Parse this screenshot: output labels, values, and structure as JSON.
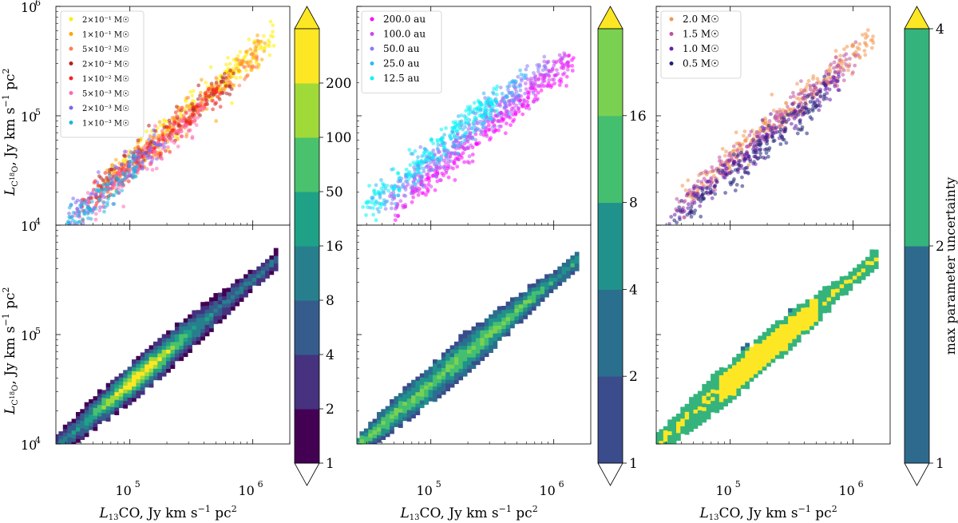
{
  "chart_data": {
    "type": "scatter",
    "layout": "2 rows x 3 columns, shared log axes; top row scatter, bottom row binned heatmap",
    "x_axis": {
      "label": "L13CO, Jy km s-1 pc2",
      "scale": "log",
      "xlim": [
        25000,
        2000000
      ],
      "ticks": [
        "10^5",
        "10^6"
      ]
    },
    "y_axis": {
      "label": "LC18O, Jy km s-1 pc2",
      "scale": "log",
      "ylim": [
        10000,
        1000000
      ],
      "ticks": [
        "10^4",
        "10^5",
        "10^6"
      ]
    },
    "scatter_panels": [
      {
        "name": "disk mass",
        "legend_placement": "top-left",
        "series": [
          {
            "label": "2×10⁻¹ M☉",
            "color": "#ffee00",
            "offset": 0.06,
            "xmin": 70000,
            "xmax": 1500000,
            "n": 200
          },
          {
            "label": "1×10⁻¹ M☉",
            "color": "#ffa500",
            "offset": 0.03,
            "xmin": 60000,
            "xmax": 1300000,
            "n": 150
          },
          {
            "label": "5×10⁻² M☉",
            "color": "#ff7f50",
            "offset": 0.0,
            "xmin": 50000,
            "xmax": 1100000,
            "n": 150
          },
          {
            "label": "2×10⁻² M☉",
            "color": "#b22222",
            "offset": 0.02,
            "xmin": 45000,
            "xmax": 700000,
            "n": 130
          },
          {
            "label": "1×10⁻² M☉",
            "color": "#ff2020",
            "offset": -0.02,
            "xmin": 40000,
            "xmax": 550000,
            "n": 130
          },
          {
            "label": "5×10⁻³ M☉",
            "color": "#ff69b4",
            "offset": -0.06,
            "xmin": 35000,
            "xmax": 400000,
            "n": 120
          },
          {
            "label": "2×10⁻³ M☉",
            "color": "#7b68ee",
            "offset": -0.04,
            "xmin": 30000,
            "xmax": 200000,
            "n": 100
          },
          {
            "label": "1×10⁻³ M☉",
            "color": "#1fb4e0",
            "offset": -0.08,
            "xmin": 28000,
            "xmax": 120000,
            "n": 100
          }
        ],
        "colorbar": {
          "ticks": [
            "1",
            "2",
            "4",
            "8",
            "16",
            "50",
            "100",
            "200"
          ],
          "colors": [
            "#440154",
            "#46327e",
            "#365c8d",
            "#277f8e",
            "#1fa187",
            "#4ac16d",
            "#a0da39",
            "#fde725"
          ],
          "extend": "both"
        }
      },
      {
        "name": "disk radius",
        "legend_placement": "top-left",
        "series": [
          {
            "label": "200.0 au",
            "color": "#ff00ff",
            "offset": -0.14,
            "xmin": 50000,
            "xmax": 1500000,
            "n": 220
          },
          {
            "label": "100.0 au",
            "color": "#c84bf0",
            "offset": -0.06,
            "xmin": 45000,
            "xmax": 1300000,
            "n": 200
          },
          {
            "label": "50.0 au",
            "color": "#8a7af5",
            "offset": 0.02,
            "xmin": 40000,
            "xmax": 900000,
            "n": 180
          },
          {
            "label": "25.0 au",
            "color": "#35b6f5",
            "offset": 0.08,
            "xmin": 32000,
            "xmax": 600000,
            "n": 170
          },
          {
            "label": "12.5 au",
            "color": "#00f5f5",
            "offset": 0.12,
            "xmin": 28000,
            "xmax": 350000,
            "n": 160
          }
        ],
        "colorbar": {
          "ticks": [
            "1",
            "2",
            "4",
            "8",
            "16"
          ],
          "colors": [
            "#3b4c8c",
            "#2b6f8e",
            "#21918c",
            "#44bf70",
            "#7ad151"
          ],
          "extend": "both"
        }
      },
      {
        "name": "stellar mass",
        "legend_placement": "top-left",
        "series": [
          {
            "label": "2.0 M☉",
            "color": "#f39651",
            "offset": 0.06,
            "xmin": 40000,
            "xmax": 1500000,
            "n": 230
          },
          {
            "label": "1.5 M☉",
            "color": "#c0529f",
            "offset": 0.02,
            "xmin": 35000,
            "xmax": 1100000,
            "n": 200
          },
          {
            "label": "1.0 M☉",
            "color": "#6a1fa8",
            "offset": -0.04,
            "xmin": 30000,
            "xmax": 800000,
            "n": 180
          },
          {
            "label": "0.5 M☉",
            "color": "#22227a",
            "offset": -0.1,
            "xmin": 28000,
            "xmax": 600000,
            "n": 160
          }
        ],
        "colorbar": {
          "label": "max parameter uncertainty",
          "ticks": [
            "1",
            "2",
            "4"
          ],
          "colors": [
            "#2e6a8e",
            "#34b47c"
          ],
          "extend": "both"
        }
      }
    ],
    "heatmap_panels": [
      {
        "name": "disk mass uncertainty",
        "levels": [
          1,
          2,
          4,
          8,
          16,
          50,
          100,
          200
        ],
        "peak_level": 6
      },
      {
        "name": "disk radius uncertainty",
        "levels": [
          1,
          2,
          4,
          8,
          16
        ],
        "peak_level": 4
      },
      {
        "name": "stellar mass uncertainty",
        "levels": [
          1,
          2,
          4
        ],
        "peak_level": 3
      }
    ]
  },
  "labels": {
    "xlabel_parts": {
      "L": "L",
      "sup": "13",
      "rest": "CO, Jy km s",
      "exp": "−1",
      "tail": " pc",
      "exp2": "2"
    },
    "ylabel_parts": {
      "L": "L",
      "sub1": "C",
      "sup": "18",
      "sub2": "O",
      "rest": ", Jy km s",
      "exp": "−1",
      "tail": " pc",
      "exp2": "2"
    },
    "x_ticks": [
      {
        "base": "10",
        "exp": "5"
      },
      {
        "base": "10",
        "exp": "6"
      }
    ],
    "y_ticks": [
      {
        "base": "10",
        "exp": "4"
      },
      {
        "base": "10",
        "exp": "5"
      },
      {
        "base": "10",
        "exp": "6"
      }
    ],
    "colorbar_label": "max parameter uncertainty"
  }
}
